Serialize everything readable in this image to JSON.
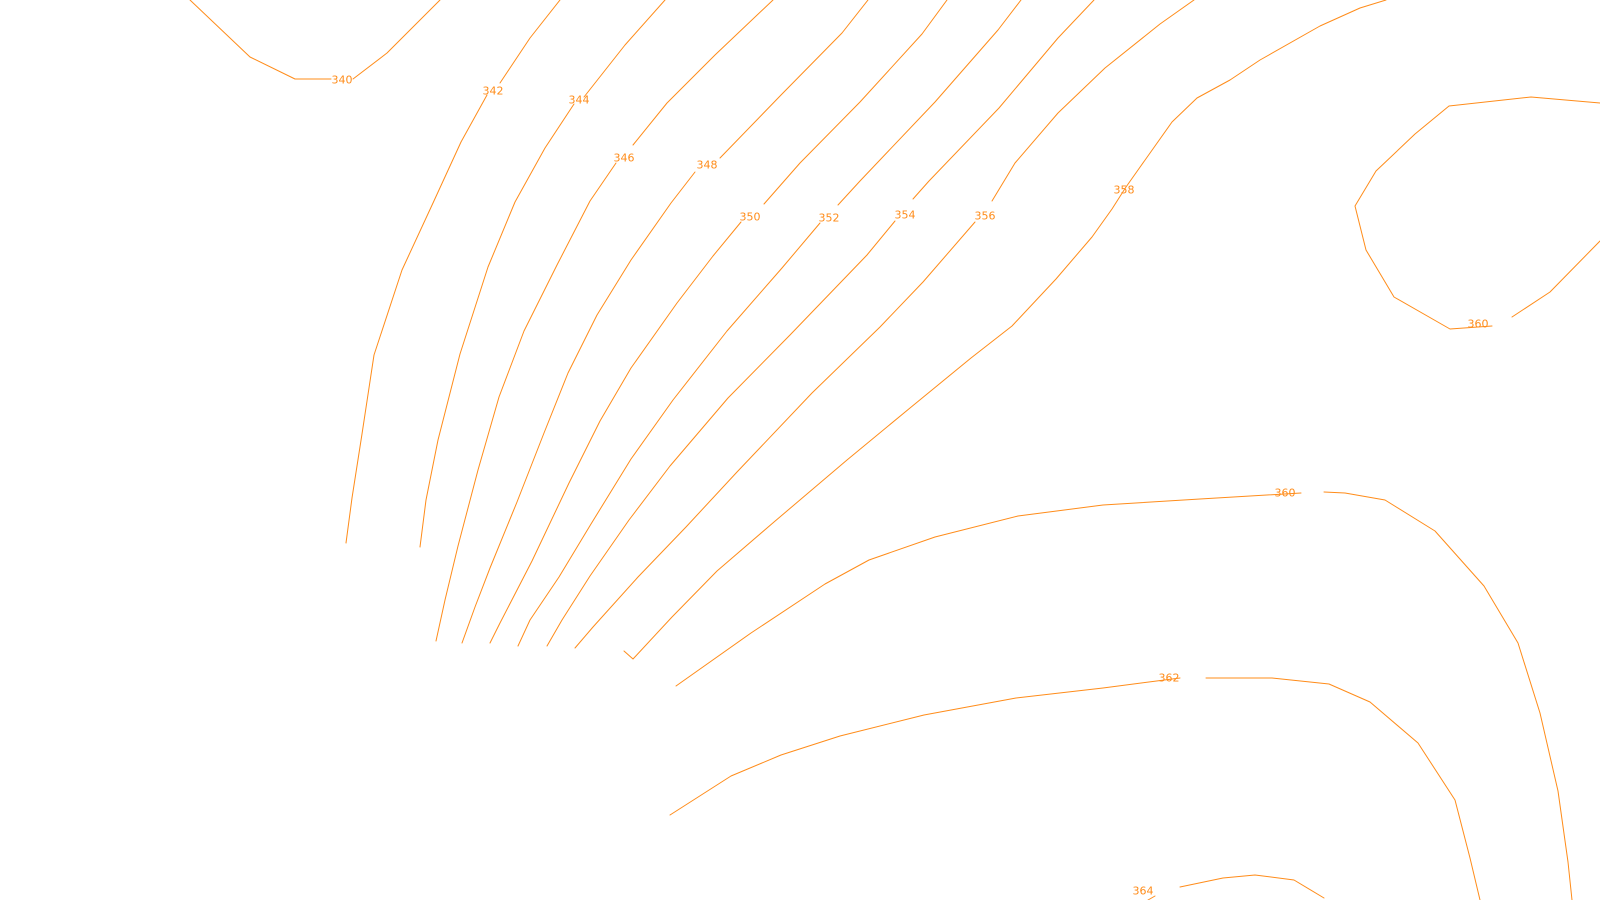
{
  "map": {
    "line_color": "#ff8c1a",
    "background": "#ffffff",
    "contour_labels": [
      "340",
      "342",
      "344",
      "346",
      "348",
      "350",
      "352",
      "354",
      "356",
      "358",
      "360",
      "360",
      "362",
      "364"
    ]
  }
}
